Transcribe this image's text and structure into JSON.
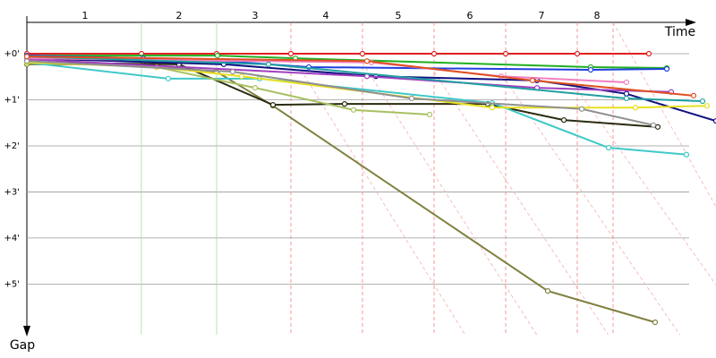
{
  "chart_data": {
    "type": "line",
    "x_label": "Time",
    "y_label": "Gap",
    "xlim": [
      0,
      77
    ],
    "ylim": [
      -0.7,
      6.1
    ],
    "xticks": [
      {
        "value": 6.5,
        "label": "1"
      },
      {
        "value": 17,
        "label": "2"
      },
      {
        "value": 25.5,
        "label": "3"
      },
      {
        "value": 33.4,
        "label": "4"
      },
      {
        "value": 41.5,
        "label": "5"
      },
      {
        "value": 49.5,
        "label": "6"
      },
      {
        "value": 57.5,
        "label": "7"
      },
      {
        "value": 63.7,
        "label": "8"
      }
    ],
    "lap_lines": [
      12.8,
      21.2,
      29.5,
      37.5,
      45.5,
      53.5,
      61.5,
      65.5
    ],
    "lap_line_colors": [
      "#a8d8a8",
      "#a8d8a8",
      "#f08080",
      "#f08080",
      "#f08080",
      "#f08080",
      "#f08080",
      "#f08080"
    ],
    "yticks": [
      {
        "value": 0,
        "label": "+0'"
      },
      {
        "value": 1,
        "label": "+1'"
      },
      {
        "value": 2,
        "label": "+2'"
      },
      {
        "value": 3,
        "label": "+3'"
      },
      {
        "value": 4,
        "label": "+4'"
      },
      {
        "value": 5,
        "label": "+5'"
      }
    ],
    "grid": true,
    "series": [
      {
        "color": "#e02020",
        "x": [
          0,
          12.8,
          21.2,
          29.5,
          37.5,
          45.5,
          53.5,
          61.5,
          69.5
        ],
        "values": [
          0,
          0,
          0,
          0,
          0,
          0,
          0,
          0,
          0
        ]
      },
      {
        "color": "#808040",
        "x": [
          0,
          13,
          21.2,
          27.5,
          58.2,
          70.2
        ],
        "values": [
          0.23,
          0.23,
          0.39,
          1.13,
          5.15,
          5.83
        ]
      },
      {
        "color": "#2a2a10",
        "x": [
          0,
          17,
          27.5,
          35.5,
          51.5,
          60,
          70.5
        ],
        "values": [
          0.19,
          0.23,
          1.11,
          1.09,
          1.09,
          1.44,
          1.59
        ]
      },
      {
        "color": "#40c8c8",
        "x": [
          0,
          15.8,
          26,
          52,
          65,
          73.7
        ],
        "values": [
          0.19,
          0.54,
          0.54,
          1.07,
          2.04,
          2.19
        ]
      },
      {
        "color": "#a8c060",
        "x": [
          0,
          14.5,
          25.5,
          36.5,
          45
        ],
        "values": [
          0.1,
          0.29,
          0.74,
          1.22,
          1.32
        ]
      },
      {
        "color": "#20b020",
        "x": [
          0,
          21.3,
          30,
          63,
          71.5
        ],
        "values": [
          0.04,
          0.04,
          0.1,
          0.29,
          0.31
        ]
      },
      {
        "color": "#2040e0",
        "x": [
          0,
          13,
          22,
          31.5,
          63,
          71.5
        ],
        "values": [
          0.04,
          0.1,
          0.16,
          0.29,
          0.35,
          0.33
        ]
      },
      {
        "color": "#101080",
        "x": [
          0,
          22,
          39,
          57,
          67,
          77
        ],
        "values": [
          0.1,
          0.23,
          0.49,
          0.58,
          0.87,
          1.46
        ]
      },
      {
        "color": "#e8e020",
        "x": [
          0,
          14.5,
          24,
          52,
          68,
          76
        ],
        "values": [
          0.19,
          0.29,
          0.49,
          1.17,
          1.17,
          1.13
        ]
      },
      {
        "color": "#a040c0",
        "x": [
          0,
          38,
          57,
          72
        ],
        "values": [
          0.12,
          0.49,
          0.74,
          0.83
        ]
      },
      {
        "color": "#f080c0",
        "x": [
          0,
          38.5,
          53,
          67
        ],
        "values": [
          0.1,
          0.19,
          0.49,
          0.62
        ]
      },
      {
        "color": "#909090",
        "x": [
          0,
          23,
          43,
          62,
          70
        ],
        "values": [
          0.16,
          0.39,
          0.97,
          1.2,
          1.55
        ]
      },
      {
        "color": "#20a0a0",
        "x": [
          0,
          27,
          67,
          75.5
        ],
        "values": [
          0.06,
          0.23,
          0.97,
          1.03
        ]
      },
      {
        "color": "#e05020",
        "x": [
          0,
          38,
          56.5,
          74.5
        ],
        "values": [
          0.06,
          0.16,
          0.58,
          0.91
        ]
      }
    ]
  }
}
